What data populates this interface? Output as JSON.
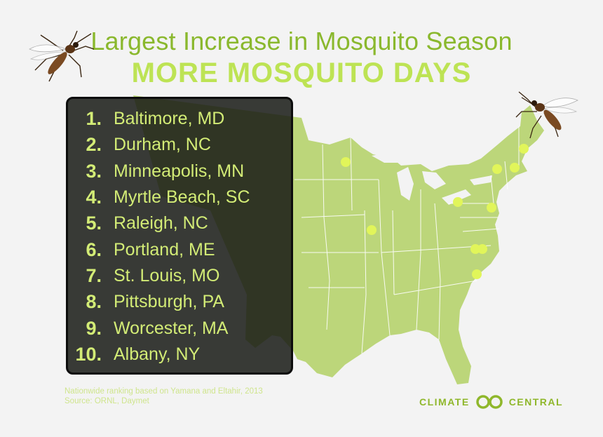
{
  "title": "Largest Increase in Mosquito Season",
  "subtitle": "MORE MOSQUITO DAYS",
  "rankings": [
    {
      "rank": "1.",
      "city": "Baltimore, MD"
    },
    {
      "rank": "2.",
      "city": "Durham, NC"
    },
    {
      "rank": "3.",
      "city": "Minneapolis, MN"
    },
    {
      "rank": "4.",
      "city": "Myrtle Beach, SC"
    },
    {
      "rank": "5.",
      "city": "Raleigh, NC"
    },
    {
      "rank": "6.",
      "city": "Portland, ME"
    },
    {
      "rank": "7.",
      "city": "St. Louis, MO"
    },
    {
      "rank": "8.",
      "city": "Pittsburgh, PA"
    },
    {
      "rank": "9.",
      "city": "Worcester, MA"
    },
    {
      "rank": "10.",
      "city": "Albany, NY"
    }
  ],
  "source": {
    "line1": "Nationwide ranking based on Yamana and Eltahir, 2013",
    "line2": "Source: ORNL, Daymet"
  },
  "logo": {
    "left": "CLIMATE",
    "right": "CENTRAL",
    "icon": "linked-circles-icon"
  },
  "icons": {
    "mosquito": "mosquito-icon"
  },
  "colors": {
    "title": "#8ab82d",
    "subtitle": "#bde354",
    "map_fill": "#bcd67a",
    "map_border": "#ffffff",
    "panel_text": "#d3ec76",
    "city_dot": "#e1f55a",
    "source_text": "#cfe58d",
    "logo_text": "#8fb72b",
    "background": "#f3f3f3"
  }
}
